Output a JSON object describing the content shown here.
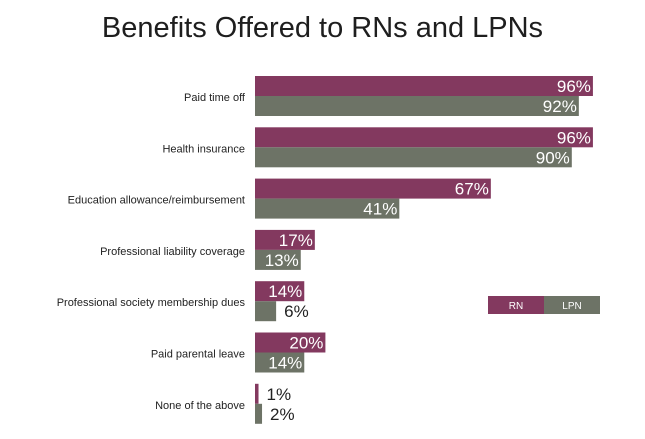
{
  "chart_data": {
    "type": "bar",
    "orientation": "horizontal",
    "title": "Benefits Offered to RNs and LPNs",
    "xlabel": "",
    "ylabel": "",
    "xlim": [
      0,
      100
    ],
    "grid": false,
    "legend_position": "right",
    "value_suffix": "%",
    "categories": [
      "Paid time off",
      "Health insurance",
      "Education allowance/reimbursement",
      "Professional liability coverage",
      "Professional society membership dues",
      "Paid parental leave",
      "None of the above"
    ],
    "series": [
      {
        "name": "RN",
        "color": "#83395f",
        "values": [
          96,
          96,
          67,
          17,
          14,
          20,
          1
        ]
      },
      {
        "name": "LPN",
        "color": "#6d7366",
        "values": [
          92,
          90,
          41,
          13,
          6,
          14,
          2
        ]
      }
    ]
  }
}
